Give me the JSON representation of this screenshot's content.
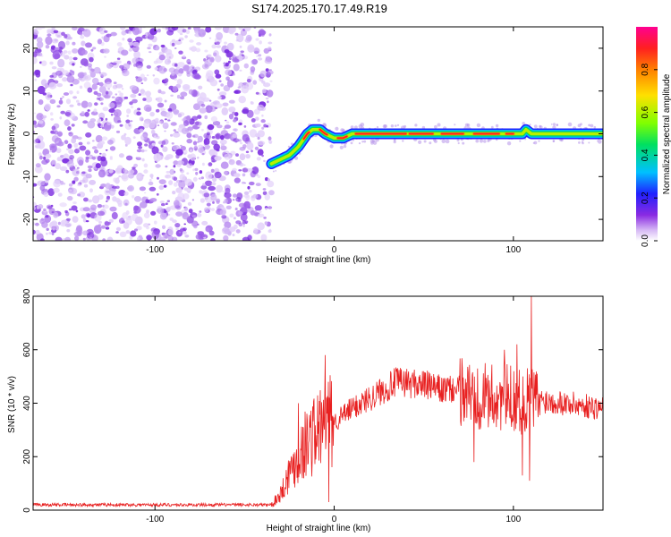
{
  "title": "S174.2025.170.17.49.R19",
  "chart_data": [
    {
      "type": "heatmap",
      "name": "spectrogram",
      "xlabel": "Height of straight line (km)",
      "ylabel": "Frequency (Hz)",
      "xlim": [
        -168,
        150
      ],
      "ylim": [
        -25,
        25
      ],
      "xticks": [
        -100,
        0,
        100
      ],
      "yticks": [
        -20,
        -10,
        0,
        10,
        20
      ],
      "colorbar": {
        "label": "Normalized spectral amplitude",
        "range": [
          0,
          1
        ],
        "ticks": [
          0.0,
          0.2,
          0.4,
          0.6,
          0.8
        ],
        "colormap": [
          "#ffffff",
          "#c8a8f0",
          "#8a2be2",
          "#2020ff",
          "#00c0ff",
          "#00e060",
          "#80ff00",
          "#ffe000",
          "#ff8000",
          "#ff2020",
          "#ff0090"
        ]
      },
      "noise_region_x": [
        -168,
        -35
      ],
      "ridge": {
        "x": [
          -35,
          -30,
          -25,
          -20,
          -15,
          -12,
          -8,
          -5,
          0,
          5,
          10,
          15,
          20,
          40,
          60,
          70,
          80,
          90,
          100,
          105,
          107,
          110,
          120,
          140,
          150
        ],
        "y": [
          -7,
          -6,
          -5,
          -3,
          0,
          1,
          1,
          0,
          -1,
          -1,
          0,
          0,
          0,
          0,
          0,
          0,
          0,
          0,
          0,
          0,
          1,
          0,
          0,
          0,
          0
        ]
      }
    },
    {
      "type": "line",
      "name": "snr",
      "xlabel": "Height of straight line (km)",
      "ylabel": "SNR (10 * v/v)",
      "xlim": [
        -168,
        150
      ],
      "ylim": [
        0,
        800
      ],
      "xticks": [
        -100,
        0,
        100
      ],
      "yticks": [
        0,
        200,
        400,
        600,
        800
      ],
      "color": "#e82020",
      "envelope": {
        "x": [
          -168,
          -35,
          -30,
          -25,
          -20,
          -15,
          -10,
          -5,
          0,
          10,
          20,
          30,
          35,
          50,
          60,
          70,
          80,
          90,
          100,
          105,
          110,
          115,
          120,
          130,
          140,
          150
        ],
        "y": [
          20,
          20,
          60,
          140,
          200,
          260,
          290,
          320,
          330,
          380,
          420,
          460,
          480,
          470,
          450,
          450,
          430,
          420,
          420,
          400,
          420,
          410,
          410,
          400,
          390,
          380
        ]
      },
      "spikes": [
        {
          "x": -20,
          "y": 400
        },
        {
          "x": -5,
          "y": 580
        },
        {
          "x": 80,
          "y": 530
        },
        {
          "x": 95,
          "y": 600
        },
        {
          "x": 102,
          "y": 620
        },
        {
          "x": 110,
          "y": 800
        }
      ],
      "dips": [
        {
          "x": -3,
          "y": 30
        },
        {
          "x": 78,
          "y": 180
        },
        {
          "x": 105,
          "y": 130
        },
        {
          "x": 109,
          "y": 110
        }
      ]
    }
  ]
}
